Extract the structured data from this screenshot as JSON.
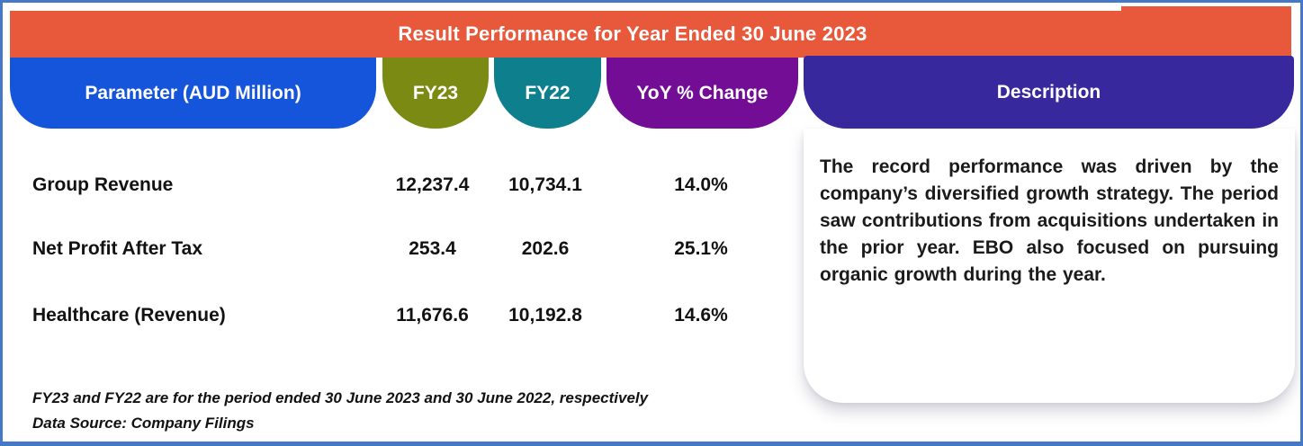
{
  "banner": {
    "title": "Result Performance for Year Ended 30 June 2023",
    "bg_color": "#E8593C"
  },
  "columns": {
    "parameter": {
      "label": "Parameter (AUD Million)",
      "color": "#1455DB"
    },
    "fy23": {
      "label": "FY23",
      "color": "#7B8A13"
    },
    "fy22": {
      "label": "FY22",
      "color": "#0E7F8D"
    },
    "yoy": {
      "label": "YoY % Change",
      "color": "#730D96"
    },
    "description": {
      "label": "Description",
      "color": "#37289D"
    }
  },
  "table": {
    "rows": [
      {
        "parameter": "Group Revenue",
        "fy23": "12,237.4",
        "fy22": "10,734.1",
        "yoy": "14.0%"
      },
      {
        "parameter": "Net Profit After Tax",
        "fy23": "253.4",
        "fy22": "202.6",
        "yoy": "25.1%"
      },
      {
        "parameter": "Healthcare (Revenue)",
        "fy23": "11,676.6",
        "fy22": "10,192.8",
        "yoy": "14.6%"
      }
    ]
  },
  "description": {
    "text": "The record performance was driven by the company’s diversified growth strategy. The period saw contributions from acquisitions undertaken in the prior year. EBO also focused on pursuing organic growth during the year."
  },
  "footnotes": {
    "line1": "FY23 and FY22 are for the period ended 30 June 2023 and 30 June 2022, respectively",
    "line2": "Data Source: Company Filings"
  },
  "frame": {
    "border_color": "#4678C8"
  },
  "chart_data": {
    "type": "table",
    "title": "Result Performance for Year Ended 30 June 2023",
    "columns": [
      "Parameter (AUD Million)",
      "FY23",
      "FY22",
      "YoY % Change",
      "Description"
    ],
    "rows": [
      [
        "Group Revenue",
        12237.4,
        10734.1,
        "14.0%"
      ],
      [
        "Net Profit After Tax",
        253.4,
        202.6,
        "25.1%"
      ],
      [
        "Healthcare (Revenue)",
        11676.6,
        10192.8,
        "14.6%"
      ]
    ],
    "notes": [
      "FY23 and FY22 are for the period ended 30 June 2023 and 30 June 2022, respectively",
      "Data Source: Company Filings"
    ]
  }
}
